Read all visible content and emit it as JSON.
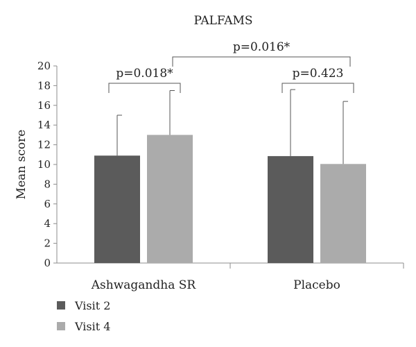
{
  "chart_data": {
    "type": "bar",
    "title": "PALFAMS",
    "ylabel": "Mean score",
    "xlabel": "",
    "ylim": [
      0,
      20
    ],
    "yticks": [
      0,
      2,
      4,
      6,
      8,
      10,
      12,
      14,
      16,
      18,
      20
    ],
    "categories": [
      "Ashwagandha SR",
      "Placebo"
    ],
    "series": [
      {
        "name": "Visit 2",
        "color": "#5b5b5b",
        "values": [
          10.9,
          10.85
        ],
        "error_upper": [
          15.0,
          17.6
        ]
      },
      {
        "name": "Visit 4",
        "color": "#ababab",
        "values": [
          13.0,
          10.05
        ],
        "error_upper": [
          17.5,
          16.4
        ]
      }
    ],
    "annotations": [
      {
        "label": "p=0.018*",
        "type": "within",
        "category": 0
      },
      {
        "label": "p=0.423",
        "type": "within",
        "category": 1
      },
      {
        "label": "p=0.016*",
        "type": "between"
      }
    ],
    "legend_position": "bottom-left",
    "grid": false
  }
}
